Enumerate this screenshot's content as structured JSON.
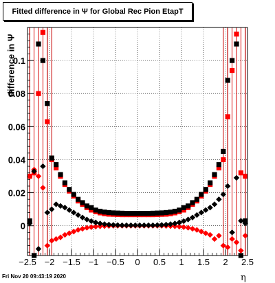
{
  "chart_data": {
    "type": "scatter",
    "title": "Fitted difference in  Ψ  for Global Rec Pion EtapT",
    "xlabel": "η",
    "ylabel": "difference in  Ψ",
    "xlim": [
      -2.5,
      2.5
    ],
    "ylim": [
      -0.018,
      0.12
    ],
    "x_ticks": [
      -2.5,
      -2,
      -1.5,
      -1,
      -0.5,
      0,
      0.5,
      1,
      1.5,
      2,
      2.5
    ],
    "x_tick_labels": [
      "−2.5",
      "−2",
      "−1.5",
      "−1",
      "−0.5",
      "0",
      "0.5",
      "1",
      "1.5",
      "2",
      "2.5"
    ],
    "y_ticks": [
      0,
      0.02,
      0.04,
      0.06,
      0.08,
      0.1
    ],
    "y_tick_labels": [
      "0",
      "0.02",
      "0.04",
      "0.06",
      "0.08",
      "0.1"
    ],
    "grid": true,
    "series": [
      {
        "marker": "square",
        "color": "#000000",
        "x": [
          -2.45,
          -2.35,
          -2.25,
          -2.15,
          -2.05,
          -1.95,
          -1.85,
          -1.75,
          -1.65,
          -1.55,
          -1.45,
          -1.35,
          -1.25,
          -1.15,
          -1.05,
          -0.95,
          -0.85,
          -0.75,
          -0.65,
          -0.55,
          -0.45,
          -0.35,
          -0.25,
          -0.15,
          -0.05,
          0.05,
          0.15,
          0.25,
          0.35,
          0.45,
          0.55,
          0.65,
          0.75,
          0.85,
          0.95,
          1.05,
          1.15,
          1.25,
          1.35,
          1.45,
          1.55,
          1.65,
          1.75,
          1.85,
          1.95,
          2.05,
          2.15,
          2.25,
          2.35,
          2.45
        ],
        "y": [
          0.003,
          -0.018,
          0.11,
          0.1,
          0.074,
          0.041,
          0.037,
          0.031,
          0.026,
          0.022,
          0.019,
          0.016,
          0.014,
          0.012,
          0.011,
          0.0095,
          0.0088,
          0.0083,
          0.008,
          0.0078,
          0.0077,
          0.0076,
          0.0075,
          0.0075,
          0.0075,
          0.0075,
          0.0075,
          0.0075,
          0.0076,
          0.0077,
          0.0078,
          0.008,
          0.0083,
          0.0088,
          0.0095,
          0.011,
          0.012,
          0.014,
          0.016,
          0.019,
          0.022,
          0.026,
          0.031,
          0.037,
          0.045,
          0.088,
          0.1,
          0.11,
          -0.018,
          0.003
        ]
      },
      {
        "marker": "square",
        "color": "#ff0000",
        "x": [
          -2.45,
          -2.35,
          -2.25,
          -2.15,
          -2.05,
          -1.95,
          -1.85,
          -1.75,
          -1.65,
          -1.55,
          -1.45,
          -1.35,
          -1.25,
          -1.15,
          -1.05,
          -0.95,
          -0.85,
          -0.75,
          -0.65,
          -0.55,
          -0.45,
          -0.35,
          -0.25,
          -0.15,
          -0.05,
          0.05,
          0.15,
          0.25,
          0.35,
          0.45,
          0.55,
          0.65,
          0.75,
          0.85,
          0.95,
          1.05,
          1.15,
          1.25,
          1.35,
          1.45,
          1.55,
          1.65,
          1.75,
          1.85,
          1.95,
          2.05,
          2.15,
          2.25,
          2.35,
          2.45
        ],
        "y": [
          0.03,
          0.032,
          0.08,
          0.117,
          0.063,
          0.04,
          0.035,
          0.03,
          0.025,
          0.021,
          0.018,
          0.015,
          0.013,
          0.011,
          0.0095,
          0.0085,
          0.0078,
          0.0073,
          0.007,
          0.0069,
          0.0068,
          0.0067,
          0.0067,
          0.0067,
          0.0067,
          0.0067,
          0.0067,
          0.0067,
          0.0067,
          0.0068,
          0.0069,
          0.007,
          0.0073,
          0.0078,
          0.0085,
          0.0095,
          0.011,
          0.013,
          0.015,
          0.018,
          0.021,
          0.025,
          0.03,
          0.035,
          0.04,
          0.066,
          0.094,
          0.116,
          0.032,
          0.03
        ]
      },
      {
        "marker": "diamond",
        "color": "#000000",
        "x": [
          -2.45,
          -2.35,
          -2.25,
          -2.15,
          -2.05,
          -1.95,
          -1.85,
          -1.75,
          -1.65,
          -1.55,
          -1.45,
          -1.35,
          -1.25,
          -1.15,
          -1.05,
          -0.95,
          -0.85,
          -0.75,
          -0.65,
          -0.55,
          -0.45,
          -0.35,
          -0.25,
          -0.15,
          -0.05,
          0.05,
          0.15,
          0.25,
          0.35,
          0.45,
          0.55,
          0.65,
          0.75,
          0.85,
          0.95,
          1.05,
          1.15,
          1.25,
          1.35,
          1.45,
          1.55,
          1.65,
          1.75,
          1.85,
          1.95,
          2.05,
          2.15,
          2.25,
          2.35,
          2.45
        ],
        "y": [
          0.0015,
          0.033,
          -0.014,
          0.036,
          0.008,
          0.01,
          0.013,
          0.012,
          0.011,
          0.0095,
          0.008,
          0.0065,
          0.005,
          0.0038,
          0.0028,
          0.002,
          0.0014,
          0.001,
          0.0007,
          0.0005,
          0.0004,
          0.0003,
          0.0003,
          0.0003,
          0.0003,
          0.0003,
          0.0003,
          0.0003,
          0.0003,
          0.0004,
          0.0005,
          0.0007,
          0.001,
          0.0014,
          0.002,
          0.0028,
          0.0038,
          0.005,
          0.0065,
          0.008,
          0.0095,
          0.011,
          0.013,
          0.016,
          0.019,
          0.024,
          -0.004,
          0.029,
          0.003,
          0.0015
        ]
      },
      {
        "marker": "diamond",
        "color": "#ff0000",
        "x": [
          -2.45,
          -2.35,
          -2.25,
          -2.15,
          -2.05,
          -1.95,
          -1.85,
          -1.75,
          -1.65,
          -1.55,
          -1.45,
          -1.35,
          -1.25,
          -1.15,
          -1.05,
          -0.95,
          -0.85,
          -0.75,
          -0.65,
          -0.55,
          -0.45,
          -0.35,
          -0.25,
          -0.15,
          -0.05,
          0.05,
          0.15,
          0.25,
          0.35,
          0.45,
          0.55,
          0.65,
          0.75,
          0.85,
          0.95,
          1.05,
          1.15,
          1.25,
          1.35,
          1.45,
          1.55,
          1.65,
          1.75,
          1.85,
          1.95,
          2.05,
          2.15,
          2.25,
          2.35,
          2.45
        ],
        "y": [
          0.03,
          0.034,
          0.03,
          0.023,
          -0.012,
          -0.009,
          -0.008,
          -0.007,
          -0.0055,
          -0.0045,
          -0.0035,
          -0.0025,
          -0.0018,
          -0.0012,
          -0.0008,
          -0.0005,
          -0.0003,
          -0.0002,
          -0.0001,
          0.0,
          0.0,
          0.0,
          0.0,
          0.0,
          0.0,
          0.0,
          0.0,
          0.0,
          0.0,
          0.0,
          0.0,
          -0.0001,
          -0.0002,
          -0.0003,
          -0.0005,
          -0.0008,
          -0.0012,
          -0.0018,
          -0.0025,
          -0.0035,
          -0.0045,
          -0.0055,
          -0.008,
          -0.006,
          -0.012,
          -0.013,
          -0.008,
          -0.01,
          -0.015,
          -0.006
        ]
      }
    ]
  },
  "footer": {
    "timestamp": "Fri Nov 20 09:43:19 2020"
  }
}
